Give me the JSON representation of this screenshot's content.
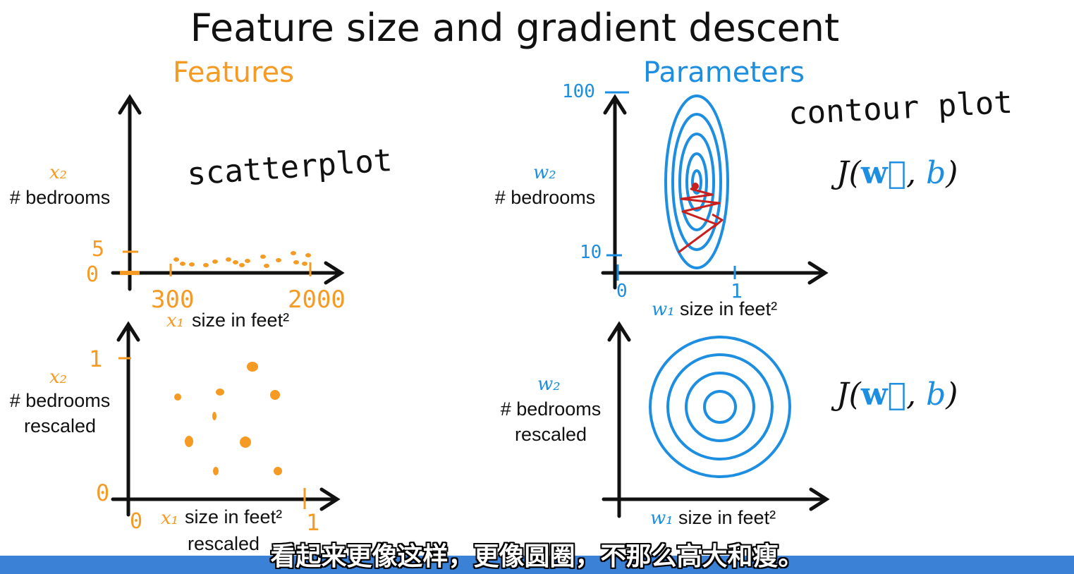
{
  "title": "Feature size and gradient descent",
  "features_heading": "Features",
  "parameters_heading": "Parameters",
  "scatterplot_note": "scatterplot",
  "contour_note": "contour plot",
  "top_left": {
    "y_var": "x₂",
    "y_label": "# bedrooms",
    "x_var": "x₁",
    "x_label": "size in feet²",
    "y_ticks": [
      "5",
      "0"
    ],
    "x_ticks": [
      "300",
      "2000"
    ]
  },
  "bottom_left": {
    "y_var": "x₂",
    "y_label_line1": "# bedrooms",
    "y_label_line2": "rescaled",
    "x_var": "x₁",
    "x_label": "size in feet²",
    "x_label2": "rescaled",
    "y_ticks": [
      "1",
      "0"
    ],
    "x_ticks": [
      "0",
      "1"
    ]
  },
  "top_right": {
    "y_var": "w₂",
    "y_label": "# bedrooms",
    "x_var": "w₁",
    "x_label": "size in feet²",
    "y_ticks": [
      "100",
      "10"
    ],
    "x_ticks": [
      "0",
      "1"
    ],
    "cost_label": "J(",
    "cost_w": "w⃗",
    "cost_sep": ", ",
    "cost_b": "b",
    "cost_end": ")"
  },
  "bottom_right": {
    "y_var": "w₂",
    "y_label_line1": "# bedrooms",
    "y_label_line2": "rescaled",
    "x_var": "w₁",
    "x_label": "size in feet²",
    "cost_label": "J(",
    "cost_w": "w⃗",
    "cost_sep": ", ",
    "cost_b": "b",
    "cost_end": ")"
  },
  "subtitle": "看起来更像这样，更像圆圈，不那么高大和瘦。",
  "colors": {
    "orange": "#f59a23",
    "blue": "#1d8ee0",
    "red": "#c8201e",
    "footer": "#3b82d6"
  }
}
